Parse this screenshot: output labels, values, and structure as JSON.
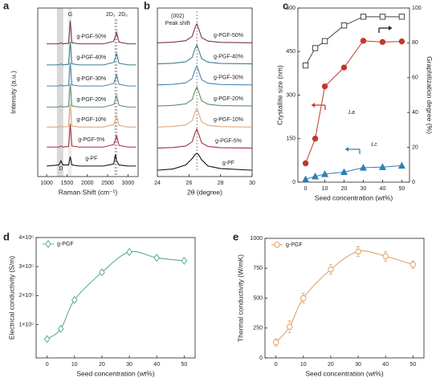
{
  "chart_data": [
    {
      "panel": "a",
      "type": "line",
      "curve_labels": true,
      "x_label": "Raman Shift (cm⁻¹)",
      "y_label": "Intensity (a.u.)",
      "x": [
        1000,
        1300,
        1350,
        1400,
        1540,
        1580,
        1620,
        1800,
        2400,
        2650,
        2690,
        2720,
        2780,
        3000,
        3200
      ],
      "xlim": [
        780,
        3250
      ],
      "xticks": [
        1000,
        1500,
        2000,
        2500,
        3000
      ],
      "ylim": [
        0,
        8
      ],
      "annotations": [
        "G",
        "2D₁",
        "2D₂",
        "D"
      ],
      "series": [
        {
          "name": "g-PGF-50%",
          "color": "#7a3346",
          "values": [
            6.3,
            6.3,
            6.35,
            6.3,
            6.33,
            7.4,
            6.35,
            6.3,
            6.3,
            6.42,
            6.65,
            6.85,
            6.38,
            6.3,
            6.3
          ]
        },
        {
          "name": "g-PGF-40%",
          "color": "#3d7f8c",
          "values": [
            5.3,
            5.3,
            5.35,
            5.3,
            5.33,
            6.4,
            5.35,
            5.3,
            5.3,
            5.42,
            5.65,
            5.85,
            5.38,
            5.3,
            5.3
          ]
        },
        {
          "name": "g-PGF-30%",
          "color": "#4a86b8",
          "values": [
            4.3,
            4.3,
            4.35,
            4.3,
            4.33,
            5.4,
            4.35,
            4.3,
            4.3,
            4.42,
            4.65,
            4.85,
            4.38,
            4.3,
            4.3
          ]
        },
        {
          "name": "g-PGF-20%",
          "color": "#5d8f76",
          "values": [
            3.3,
            3.3,
            3.35,
            3.3,
            3.33,
            4.4,
            3.35,
            3.3,
            3.3,
            3.42,
            3.65,
            3.85,
            3.38,
            3.3,
            3.3
          ]
        },
        {
          "name": "g-PGF-10%",
          "color": "#e3a77a",
          "values": [
            2.35,
            2.35,
            2.4,
            2.35,
            2.38,
            3.45,
            2.4,
            2.35,
            2.35,
            2.47,
            2.7,
            2.9,
            2.43,
            2.35,
            2.35
          ]
        },
        {
          "name": "g-PGF-5%",
          "color": "#a5303e",
          "values": [
            1.4,
            1.4,
            1.45,
            1.4,
            1.43,
            2.5,
            1.45,
            1.4,
            1.4,
            1.52,
            1.75,
            1.95,
            1.48,
            1.4,
            1.4
          ]
        },
        {
          "name": "g-PF",
          "color": "#111111",
          "values": [
            0.5,
            0.55,
            0.75,
            0.55,
            0.55,
            0.95,
            0.55,
            0.5,
            0.5,
            0.6,
            1.05,
            0.75,
            0.55,
            0.5,
            0.5
          ]
        }
      ]
    },
    {
      "panel": "b",
      "type": "line",
      "curve_labels": true,
      "x_label": "2θ (degree)",
      "x": [
        24,
        25,
        25.8,
        26.2,
        26.4,
        26.5,
        26.6,
        26.8,
        27.2,
        28,
        30
      ],
      "xlim": [
        24,
        30
      ],
      "xticks": [
        24,
        26,
        28,
        30
      ],
      "ylim": [
        0,
        8
      ],
      "annotations": [
        "(002)",
        "Peak shift"
      ],
      "series": [
        {
          "name": "g-PGF-50%",
          "color": "#7a3346",
          "values": [
            6.35,
            6.38,
            6.45,
            6.65,
            7.1,
            7.25,
            7.05,
            6.6,
            6.43,
            6.37,
            6.35
          ]
        },
        {
          "name": "g-PGF-40%",
          "color": "#3d7f8c",
          "values": [
            5.35,
            5.38,
            5.45,
            5.65,
            6.1,
            6.25,
            6.05,
            5.6,
            5.43,
            5.37,
            5.35
          ]
        },
        {
          "name": "g-PGF-30%",
          "color": "#4a86b8",
          "values": [
            4.35,
            4.38,
            4.45,
            4.65,
            5.1,
            5.25,
            5.05,
            4.6,
            4.43,
            4.37,
            4.35
          ]
        },
        {
          "name": "g-PGF-20%",
          "color": "#5d8f76",
          "values": [
            3.35,
            3.38,
            3.45,
            3.65,
            4.1,
            4.25,
            4.05,
            3.6,
            3.43,
            3.37,
            3.35
          ]
        },
        {
          "name": "g-PGF-10%",
          "color": "#e3a77a",
          "values": [
            2.35,
            2.38,
            2.45,
            2.65,
            3.1,
            3.25,
            3.05,
            2.6,
            2.43,
            2.37,
            2.35
          ]
        },
        {
          "name": "g-PGF-5%",
          "color": "#a5303e",
          "values": [
            1.35,
            1.38,
            1.45,
            1.65,
            2.1,
            2.25,
            2.05,
            1.6,
            1.43,
            1.37,
            1.35
          ]
        },
        {
          "name": "g-PF",
          "color": "#111111",
          "values": [
            0.3,
            0.36,
            0.55,
            0.85,
            1.05,
            1.1,
            1.05,
            0.8,
            0.5,
            0.38,
            0.3
          ]
        }
      ]
    },
    {
      "panel": "c",
      "type": "line",
      "curve_labels": true,
      "x_label": "Seed concentration (wt%)",
      "y_label": "Crystallite size (nm)",
      "y2_label": "Graphitization degree (%)",
      "x": [
        0,
        5,
        10,
        20,
        30,
        40,
        50
      ],
      "xlim": [
        -4,
        54
      ],
      "xticks": [
        0,
        10,
        20,
        30,
        40,
        50
      ],
      "ylim": [
        0,
        600
      ],
      "yticks": [
        0,
        150,
        300,
        450,
        600
      ],
      "y2lim": [
        0,
        100
      ],
      "y2ticks": [
        0,
        20,
        40,
        60,
        80,
        100
      ],
      "series": [
        {
          "name": "La",
          "color": "#c0392b",
          "marker": "circle",
          "values": [
            65,
            150,
            330,
            395,
            487,
            483,
            485
          ]
        },
        {
          "name": "Lc",
          "color": "#2f7fb8",
          "marker": "triangle",
          "values": [
            10,
            20,
            28,
            35,
            50,
            52,
            57
          ]
        },
        {
          "color": "#444444",
          "marker": "square",
          "axis": "y2",
          "values": [
            67,
            77,
            81,
            90,
            95,
            95,
            95
          ]
        }
      ]
    },
    {
      "panel": "d",
      "type": "scatter",
      "fit": true,
      "legend": "upper left",
      "x_label": "Seed concentration (wt%)",
      "y_label": "Electrical conductivity (S/m)",
      "x": [
        0,
        5,
        10,
        20,
        30,
        40,
        50
      ],
      "xlim": [
        -4,
        54
      ],
      "xticks": [
        0,
        10,
        20,
        30,
        40,
        50
      ],
      "ylim": [
        -15000,
        400000
      ],
      "yticks": [
        {
          "value": 100000,
          "label": "1×10⁵"
        },
        {
          "value": 200000,
          "label": "2×10⁵"
        },
        {
          "value": 300000,
          "label": "3×10⁵"
        },
        {
          "value": 400000,
          "label": "4×10⁵"
        }
      ],
      "series": [
        {
          "name": "g-PGF",
          "color": "#5fa8a2",
          "marker": "diamond",
          "values": [
            50000,
            85000,
            185000,
            280000,
            350000,
            330000,
            320000
          ]
        }
      ]
    },
    {
      "panel": "e",
      "type": "scatter",
      "fit": true,
      "legend": "upper left",
      "x_label": "Seed concentration (wt%)",
      "y_label": "Thermal conductivity (W/mK)",
      "x": [
        0,
        5,
        10,
        20,
        30,
        40,
        50
      ],
      "xlim": [
        -4,
        54
      ],
      "xticks": [
        0,
        10,
        20,
        30,
        40,
        50
      ],
      "ylim": [
        0,
        1000
      ],
      "yticks": [
        0,
        250,
        500,
        750,
        1000
      ],
      "series": [
        {
          "name": "g-PGF",
          "color": "#e0a264",
          "marker": "circle",
          "values": [
            130,
            260,
            500,
            740,
            890,
            850,
            780
          ],
          "errors": [
            30,
            50,
            40,
            40,
            40,
            40,
            30
          ]
        }
      ]
    }
  ]
}
